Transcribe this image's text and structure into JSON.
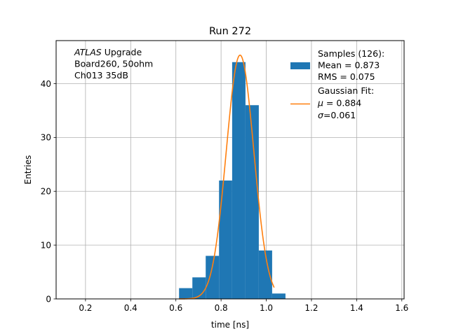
{
  "chart_data": {
    "type": "bar",
    "title": "Run 272",
    "xlabel": "time [ns]",
    "ylabel": "Entries",
    "xlim": [
      0.07,
      1.61
    ],
    "ylim": [
      0,
      48
    ],
    "grid": true,
    "legend_placement": "top-right",
    "x_ticks": [
      0.2,
      0.4,
      0.6,
      0.8,
      1.0,
      1.2,
      1.4,
      1.6
    ],
    "y_ticks": [
      0,
      10,
      20,
      30,
      40
    ],
    "annotation": {
      "lines": [
        {
          "italic": "ATLAS",
          "text": " Upgrade"
        },
        {
          "italic": "",
          "text": " Board260, 50ohm"
        },
        {
          "italic": "",
          "text": " Ch013 35dB"
        }
      ],
      "placement": "top-left"
    },
    "histogram": {
      "color": "#1f77b4",
      "bins": [
        {
          "x0": 0.614,
          "x1": 0.673,
          "count": 2
        },
        {
          "x0": 0.673,
          "x1": 0.732,
          "count": 4
        },
        {
          "x0": 0.732,
          "x1": 0.791,
          "count": 8
        },
        {
          "x0": 0.791,
          "x1": 0.849,
          "count": 22
        },
        {
          "x0": 0.849,
          "x1": 0.908,
          "count": 44
        },
        {
          "x0": 0.908,
          "x1": 0.967,
          "count": 36
        },
        {
          "x0": 0.967,
          "x1": 1.026,
          "count": 9
        },
        {
          "x0": 1.026,
          "x1": 1.085,
          "count": 1
        }
      ]
    },
    "series": [
      {
        "type": "histogram",
        "legend": [
          "Samples (126):",
          " Mean = 0.873",
          " RMS = 0.075"
        ],
        "color": "#1f77b4"
      },
      {
        "type": "line",
        "legend": [
          "Gaussian Fit:",
          {
            "italic": "μ",
            "text": " = 0.884"
          },
          {
            "italic": "σ",
            "text": "=0.061"
          }
        ],
        "color": "#ff7f0e",
        "fit": {
          "amplitude": 45.3,
          "mu": 0.884,
          "sigma": 0.061,
          "x_range": [
            0.614,
            1.035
          ]
        }
      }
    ]
  }
}
